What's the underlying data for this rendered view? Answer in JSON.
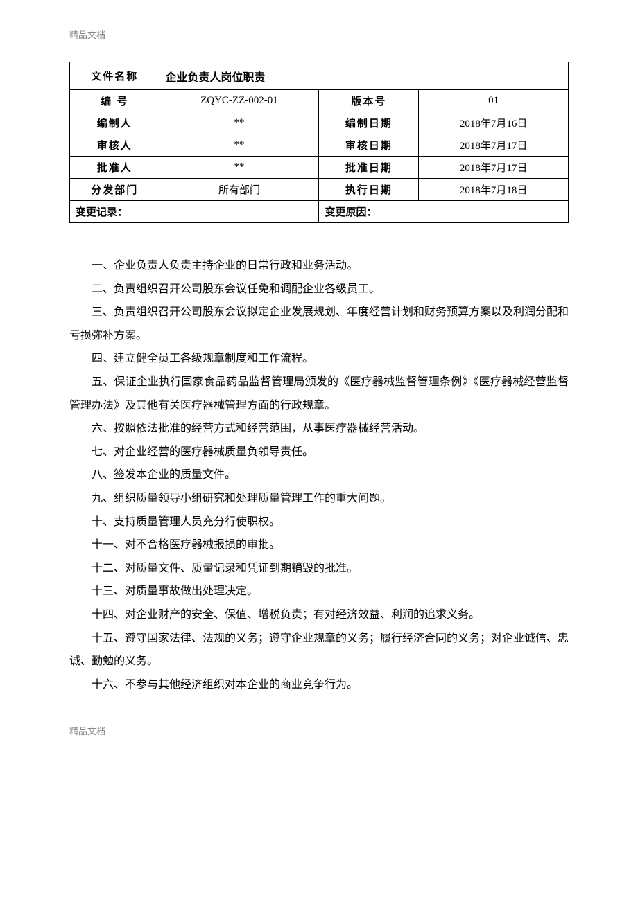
{
  "header_label": "精品文档",
  "footer_label": "精品文档",
  "table": {
    "file_name_label": "文件名称",
    "file_name_value": "企业负责人岗位职责",
    "code_label": "编  号",
    "code_value": "ZQYC-ZZ-002-01",
    "version_label": "版本号",
    "version_value": "01",
    "author_label": "编制人",
    "author_value": "**",
    "author_date_label": "编制日期",
    "author_date_value": "2018年7月16日",
    "reviewer_label": "审核人",
    "reviewer_value": "**",
    "review_date_label": "审核日期",
    "review_date_value": "2018年7月17日",
    "approver_label": "批准人",
    "approver_value": "**",
    "approve_date_label": "批准日期",
    "approve_date_value": "2018年7月17日",
    "dept_label": "分发部门",
    "dept_value": "所有部门",
    "exec_date_label": "执行日期",
    "exec_date_value": "2018年7月18日",
    "change_record_label": "变更记录：",
    "change_reason_label": "变更原因："
  },
  "content": {
    "p1": "一、企业负责人负责主持企业的日常行政和业务活动。",
    "p2": "二、负责组织召开公司股东会议任免和调配企业各级员工。",
    "p3": "三、负责组织召开公司股东会议拟定企业发展规划、年度经营计划和财务预算方案以及利润分配和亏损弥补方案。",
    "p4": "四、建立健全员工各级规章制度和工作流程。",
    "p5": "五、保证企业执行国家食品药品监督管理局颁发的《医疗器械监督管理条例》《医疗器械经营监督管理办法》及其他有关医疗器械管理方面的行政规章。",
    "p6": "六、按照依法批准的经营方式和经营范围，从事医疗器械经营活动。",
    "p7": "七、对企业经营的医疗器械质量负领导责任。",
    "p8": "八、签发本企业的质量文件。",
    "p9": "九、组织质量领导小组研究和处理质量管理工作的重大问题。",
    "p10": "十、支持质量管理人员充分行使职权。",
    "p11": "十一、对不合格医疗器械报损的审批。",
    "p12": "十二、对质量文件、质量记录和凭证到期销毁的批准。",
    "p13": "十三、对质量事故做出处理决定。",
    "p14": "十四、对企业财产的安全、保值、增税负责；有对经济效益、利润的追求义务。",
    "p15": "十五、遵守国家法律、法规的义务；遵守企业规章的义务；履行经济合同的义务；对企业诚信、忠诚、勤勉的义务。",
    "p16": "十六、不参与其他经济组织对本企业的商业竞争行为。"
  }
}
